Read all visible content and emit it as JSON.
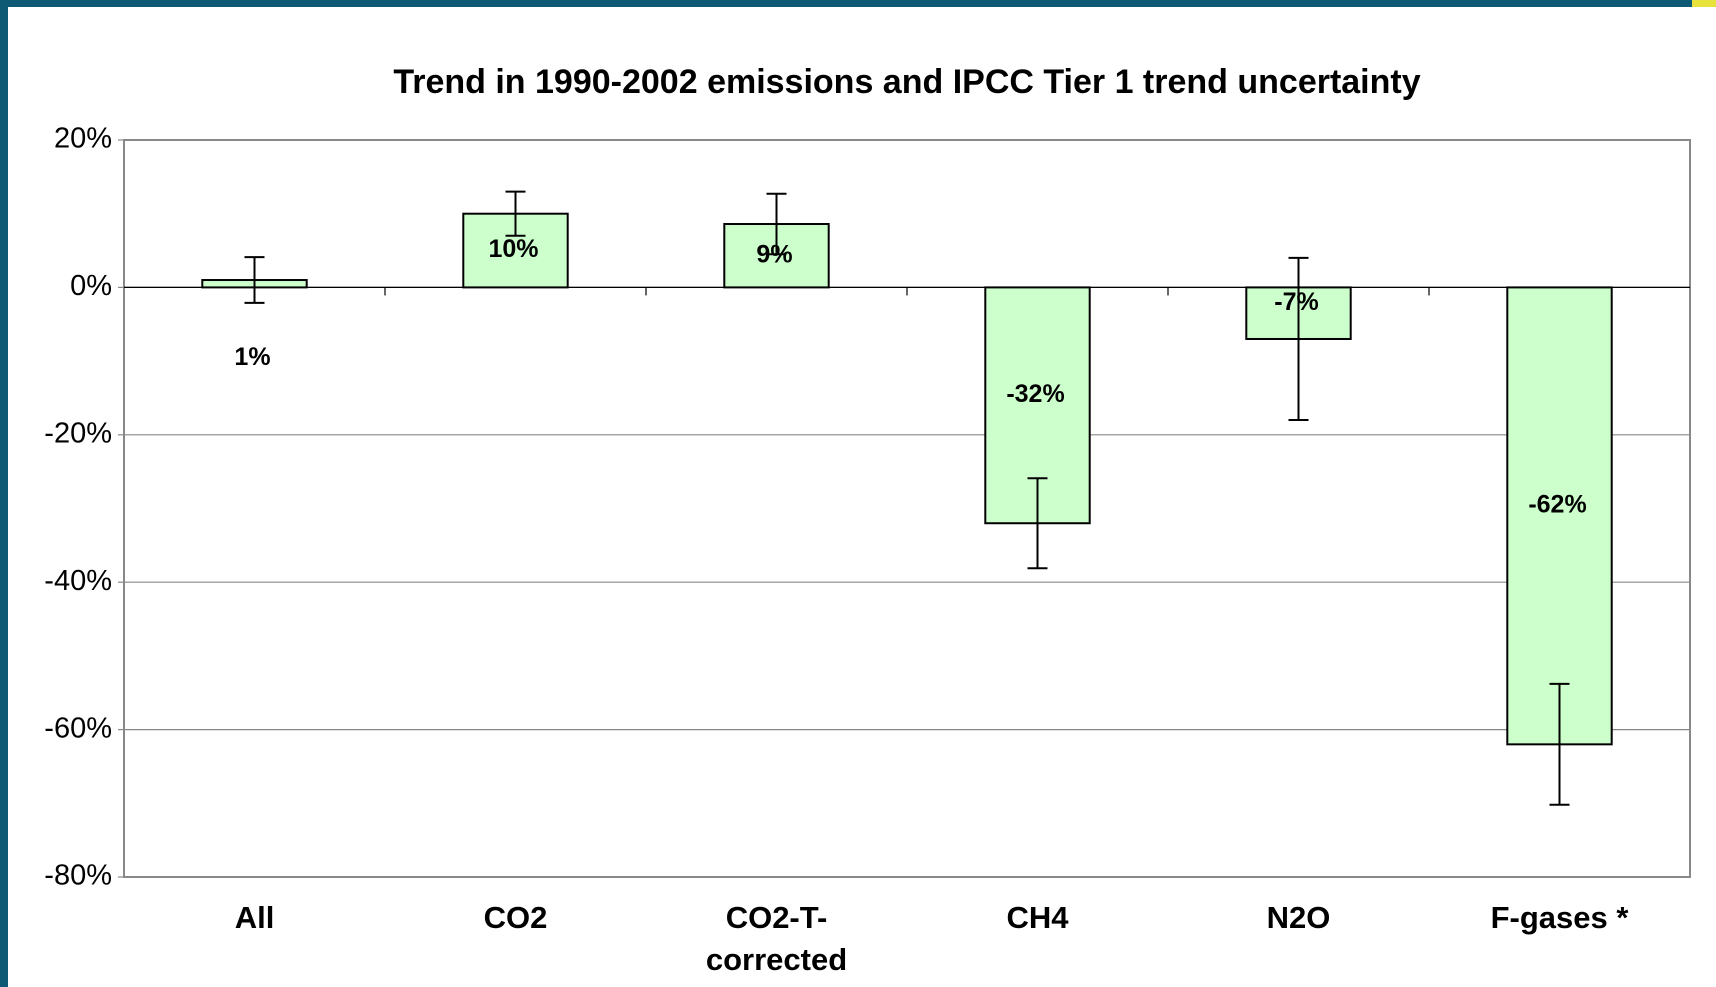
{
  "chart_data": {
    "type": "bar",
    "title": "Trend in 1990-2002 emissions and IPCC Tier 1 trend uncertainty",
    "categories": [
      "All",
      "CO2",
      "CO2-T-corrected",
      "CH4",
      "N2O",
      "F-gases *"
    ],
    "values": [
      1,
      10,
      8.6,
      -32,
      -7,
      -62
    ],
    "value_labels": [
      "1%",
      "10%",
      "9%",
      "-32%",
      "-7%",
      "-62%"
    ],
    "errors": [
      3.1,
      3,
      4.1,
      6.1,
      11,
      8.2
    ],
    "color": "#ccffcc",
    "ylim": [
      -80,
      20
    ],
    "yticks": [
      {
        "value": -80,
        "label": "-80%"
      },
      {
        "value": -60,
        "label": "-60%"
      },
      {
        "value": -40,
        "label": "-40%"
      },
      {
        "value": -20,
        "label": "-20%"
      },
      {
        "value": 0,
        "label": "0%"
      },
      {
        "value": 20,
        "label": "20%"
      }
    ],
    "grid": true
  }
}
